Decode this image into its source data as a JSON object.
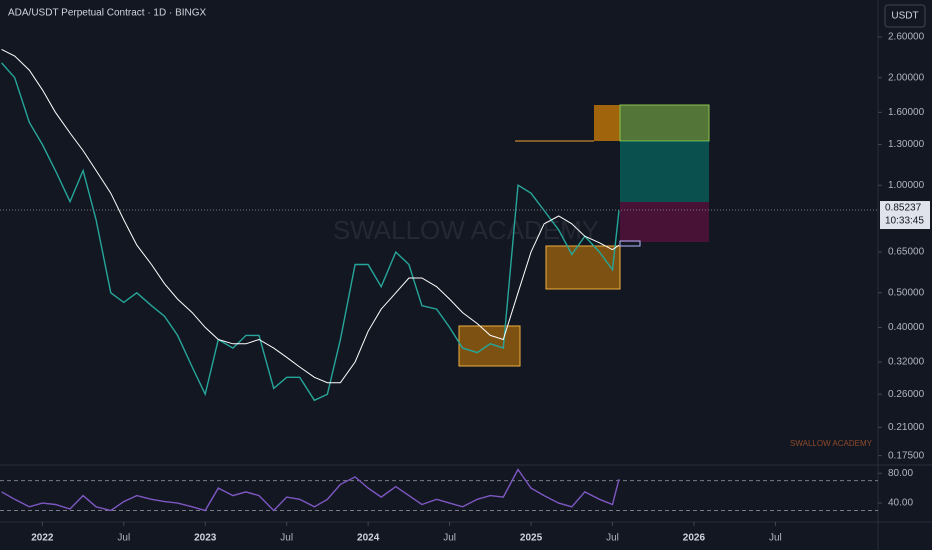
{
  "chart_data": [
    {
      "type": "line",
      "title": "ADA/USDT Perpetual Contract · 1D · BINGX",
      "currency": "USDT",
      "watermark": "SWALLOW ACADEMY",
      "footer_mark": "SWALLOW ACADEMY",
      "log_scale": true,
      "x": [
        2021.75,
        2021.83,
        2021.92,
        2022.0,
        2022.08,
        2022.17,
        2022.25,
        2022.33,
        2022.42,
        2022.5,
        2022.58,
        2022.67,
        2022.75,
        2022.83,
        2022.92,
        2023.0,
        2023.08,
        2023.17,
        2023.25,
        2023.33,
        2023.42,
        2023.5,
        2023.58,
        2023.67,
        2023.75,
        2023.83,
        2023.92,
        2024.0,
        2024.08,
        2024.17,
        2024.25,
        2024.33,
        2024.42,
        2024.5,
        2024.58,
        2024.67,
        2024.75,
        2024.83,
        2024.92,
        2025.0,
        2025.08,
        2025.17,
        2025.25,
        2025.33,
        2025.42,
        2025.5,
        2025.54
      ],
      "series": [
        {
          "color": "#26a69a",
          "values": [
            2.2,
            2.0,
            1.5,
            1.3,
            1.1,
            0.9,
            1.1,
            0.8,
            0.5,
            0.47,
            0.5,
            0.46,
            0.43,
            0.38,
            0.31,
            0.26,
            0.37,
            0.35,
            0.38,
            0.38,
            0.27,
            0.29,
            0.29,
            0.25,
            0.26,
            0.37,
            0.6,
            0.6,
            0.52,
            0.65,
            0.6,
            0.46,
            0.45,
            0.4,
            0.35,
            0.34,
            0.36,
            0.35,
            1.0,
            0.95,
            0.85,
            0.75,
            0.64,
            0.72,
            0.65,
            0.58,
            0.85
          ]
        },
        {
          "color": "#ffffff",
          "values": [
            2.4,
            2.3,
            2.1,
            1.85,
            1.6,
            1.4,
            1.25,
            1.1,
            0.95,
            0.8,
            0.68,
            0.6,
            0.53,
            0.48,
            0.44,
            0.4,
            0.37,
            0.36,
            0.36,
            0.37,
            0.35,
            0.33,
            0.31,
            0.29,
            0.28,
            0.28,
            0.32,
            0.39,
            0.45,
            0.5,
            0.55,
            0.55,
            0.52,
            0.48,
            0.44,
            0.41,
            0.38,
            0.37,
            0.5,
            0.65,
            0.78,
            0.82,
            0.78,
            0.72,
            0.69,
            0.66,
            0.68
          ]
        }
      ],
      "last_price": 0.85237,
      "countdown": "10:33:45",
      "xlim": [
        2021.74,
        2027.13
      ],
      "xticks": [
        {
          "value": 2022,
          "label": "2022"
        },
        {
          "value": 2022.5,
          "label": "Jul"
        },
        {
          "value": 2023,
          "label": "2023"
        },
        {
          "value": 2023.5,
          "label": "Jul"
        },
        {
          "value": 2024,
          "label": "2024"
        },
        {
          "value": 2024.5,
          "label": "Jul"
        },
        {
          "value": 2025,
          "label": "2025"
        },
        {
          "value": 2025.5,
          "label": "Jul"
        },
        {
          "value": 2026,
          "label": "2026"
        },
        {
          "value": 2026.5,
          "label": "Jul"
        }
      ],
      "ylim": [
        0.168,
        3.3
      ],
      "yticks": [
        {
          "value": 2.6,
          "label": "2.60000"
        },
        {
          "value": 2.0,
          "label": "2.00000"
        },
        {
          "value": 1.6,
          "label": "1.60000"
        },
        {
          "value": 1.3,
          "label": "1.30000"
        },
        {
          "value": 1.0,
          "label": "1.00000"
        },
        {
          "value": 0.65,
          "label": "0.65000"
        },
        {
          "value": 0.5,
          "label": "0.50000"
        },
        {
          "value": 0.4,
          "label": "0.40000"
        },
        {
          "value": 0.32,
          "label": "0.32000"
        },
        {
          "value": 0.26,
          "label": "0.26000"
        },
        {
          "value": 0.21,
          "label": "0.21000"
        },
        {
          "value": 0.175,
          "label": "0.17500"
        }
      ]
    },
    {
      "type": "line",
      "series": [
        {
          "color": "#7e57c2",
          "values": [
            55,
            45,
            35,
            40,
            38,
            32,
            50,
            35,
            30,
            42,
            50,
            45,
            42,
            40,
            35,
            30,
            60,
            50,
            55,
            50,
            30,
            48,
            45,
            35,
            45,
            65,
            75,
            60,
            48,
            62,
            50,
            38,
            45,
            40,
            35,
            45,
            50,
            48,
            85,
            60,
            50,
            40,
            35,
            55,
            45,
            38,
            72
          ]
        }
      ],
      "bands": [
        30,
        70
      ],
      "ylim": [
        28,
        87
      ],
      "yticks": [
        {
          "value": 80,
          "label": "80.00"
        },
        {
          "value": 40,
          "label": "40.00"
        }
      ]
    }
  ]
}
